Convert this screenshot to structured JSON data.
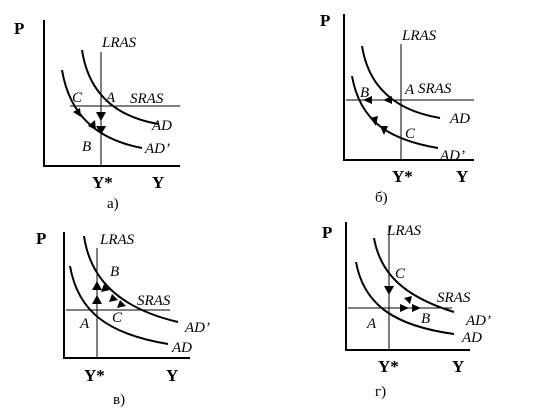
{
  "panels": [
    {
      "id": "a",
      "caption": "а)",
      "axis_p": "P",
      "axis_y": "Y",
      "y_star": "Y*",
      "labels": {
        "lras": "LRAS",
        "sras": "SRAS",
        "ad": "AD",
        "ad_prime": "AD’"
      },
      "points": [
        "A",
        "B",
        "C"
      ]
    },
    {
      "id": "b",
      "caption": "б)",
      "axis_p": "P",
      "axis_y": "Y",
      "y_star": "Y*",
      "labels": {
        "lras": "LRAS",
        "sras": "SRAS",
        "ad": "AD",
        "ad_prime": "AD’"
      },
      "points": [
        "A",
        "B",
        "C"
      ]
    },
    {
      "id": "c",
      "caption": "в)",
      "axis_p": "P",
      "axis_y": "Y",
      "y_star": "Y*",
      "labels": {
        "lras": "LRAS",
        "sras": "SRAS",
        "ad": "AD",
        "ad_prime": "AD’"
      },
      "points": [
        "A",
        "B",
        "C"
      ]
    },
    {
      "id": "d",
      "caption": "г)",
      "axis_p": "P",
      "axis_y": "Y",
      "y_star": "Y*",
      "labels": {
        "lras": "LRAS",
        "sras": "SRAS",
        "ad": "AD",
        "ad_prime": "AD’"
      },
      "points": [
        "A",
        "B",
        "C"
      ]
    }
  ]
}
